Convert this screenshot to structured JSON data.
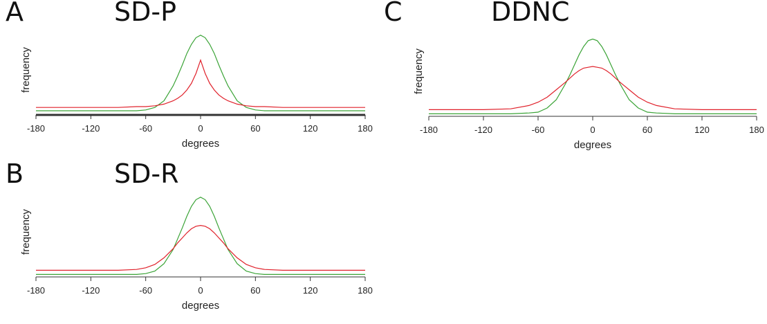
{
  "chart_data": [
    {
      "type": "line",
      "panel_label": "A",
      "title": "SD-P",
      "xlabel": "degrees",
      "ylabel": "frequency",
      "x": [
        -180,
        -150,
        -120,
        -90,
        -70,
        -60,
        -50,
        -40,
        -30,
        -25,
        -20,
        -15,
        -10,
        -5,
        0,
        5,
        10,
        15,
        20,
        25,
        30,
        40,
        50,
        60,
        70,
        90,
        120,
        150,
        180
      ],
      "xlim": [
        -180,
        180
      ],
      "xticks": [
        -180,
        -120,
        -60,
        0,
        60,
        120,
        180
      ],
      "ylim": [
        0,
        1
      ],
      "series": [
        {
          "color": "#3aa336",
          "values": [
            0.05,
            0.05,
            0.05,
            0.05,
            0.05,
            0.06,
            0.09,
            0.17,
            0.35,
            0.47,
            0.6,
            0.74,
            0.85,
            0.93,
            0.96,
            0.93,
            0.85,
            0.74,
            0.6,
            0.47,
            0.35,
            0.17,
            0.09,
            0.06,
            0.05,
            0.05,
            0.05,
            0.05,
            0.05
          ]
        },
        {
          "color": "#e0202a",
          "values": [
            0.09,
            0.09,
            0.09,
            0.09,
            0.1,
            0.1,
            0.11,
            0.13,
            0.17,
            0.2,
            0.24,
            0.3,
            0.38,
            0.5,
            0.66,
            0.5,
            0.38,
            0.3,
            0.24,
            0.2,
            0.17,
            0.13,
            0.11,
            0.1,
            0.1,
            0.09,
            0.09,
            0.09,
            0.09
          ]
        }
      ]
    },
    {
      "type": "line",
      "panel_label": "B",
      "title": "SD-R",
      "xlabel": "degrees",
      "ylabel": "frequency",
      "x": [
        -180,
        -150,
        -120,
        -90,
        -70,
        -60,
        -50,
        -40,
        -30,
        -25,
        -20,
        -15,
        -10,
        -5,
        0,
        5,
        10,
        15,
        20,
        25,
        30,
        40,
        50,
        60,
        70,
        90,
        120,
        150,
        180
      ],
      "xlim": [
        -180,
        180
      ],
      "xticks": [
        -180,
        -120,
        -60,
        0,
        60,
        120,
        180
      ],
      "ylim": [
        0,
        1
      ],
      "series": [
        {
          "color": "#3aa336",
          "values": [
            0.03,
            0.03,
            0.03,
            0.03,
            0.03,
            0.04,
            0.07,
            0.16,
            0.33,
            0.46,
            0.59,
            0.73,
            0.85,
            0.93,
            0.96,
            0.93,
            0.85,
            0.73,
            0.59,
            0.46,
            0.33,
            0.16,
            0.07,
            0.04,
            0.03,
            0.03,
            0.03,
            0.03,
            0.03
          ]
        },
        {
          "color": "#e0202a",
          "values": [
            0.08,
            0.08,
            0.08,
            0.08,
            0.09,
            0.11,
            0.15,
            0.23,
            0.34,
            0.41,
            0.47,
            0.53,
            0.58,
            0.61,
            0.62,
            0.61,
            0.58,
            0.53,
            0.47,
            0.41,
            0.34,
            0.23,
            0.15,
            0.11,
            0.09,
            0.08,
            0.08,
            0.08,
            0.08
          ]
        }
      ]
    },
    {
      "type": "line",
      "panel_label": "C",
      "title": "DDNC",
      "xlabel": "degrees",
      "ylabel": "frequency",
      "x": [
        -180,
        -150,
        -120,
        -90,
        -70,
        -60,
        -50,
        -40,
        -30,
        -25,
        -20,
        -15,
        -10,
        -5,
        0,
        5,
        10,
        15,
        20,
        25,
        30,
        40,
        50,
        60,
        70,
        90,
        120,
        150,
        180
      ],
      "xlim": [
        -180,
        180
      ],
      "xticks": [
        -180,
        -120,
        -60,
        0,
        60,
        120,
        180
      ],
      "ylim": [
        0,
        1
      ],
      "series": [
        {
          "color": "#3aa336",
          "values": [
            0.03,
            0.03,
            0.03,
            0.03,
            0.04,
            0.05,
            0.1,
            0.2,
            0.39,
            0.5,
            0.62,
            0.74,
            0.84,
            0.91,
            0.93,
            0.91,
            0.84,
            0.74,
            0.62,
            0.5,
            0.39,
            0.2,
            0.1,
            0.05,
            0.04,
            0.03,
            0.03,
            0.03,
            0.03
          ]
        },
        {
          "color": "#e0202a",
          "values": [
            0.08,
            0.08,
            0.08,
            0.09,
            0.13,
            0.17,
            0.23,
            0.32,
            0.41,
            0.46,
            0.51,
            0.55,
            0.58,
            0.59,
            0.6,
            0.59,
            0.58,
            0.55,
            0.51,
            0.46,
            0.41,
            0.32,
            0.23,
            0.17,
            0.13,
            0.09,
            0.08,
            0.08,
            0.08
          ]
        }
      ]
    }
  ]
}
